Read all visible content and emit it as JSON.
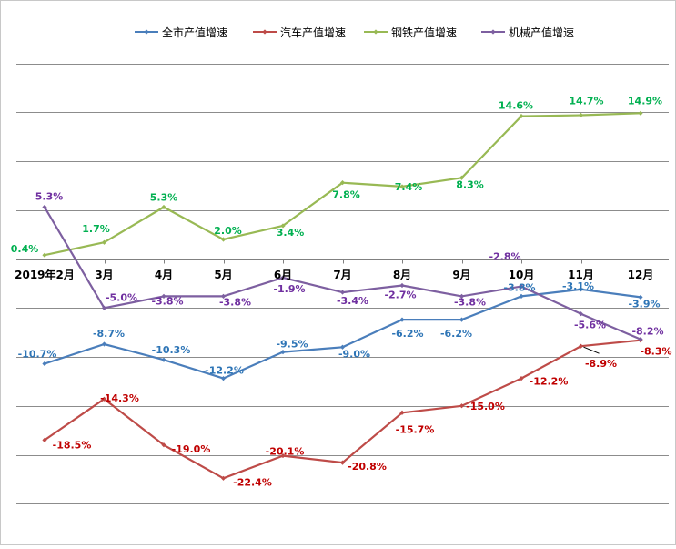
{
  "chart_data": {
    "type": "line",
    "categories": [
      "2019年2月",
      "3月",
      "4月",
      "5月",
      "6月",
      "7月",
      "8月",
      "9月",
      "10月",
      "11月",
      "12月"
    ],
    "ylim": [
      -27,
      30
    ],
    "grid": true,
    "legend": "top",
    "series": [
      {
        "name": "全市产值增速",
        "color": "#4a7ebb",
        "label_color": "#2e75b6",
        "values": [
          -10.7,
          -8.7,
          -10.3,
          -12.2,
          -9.5,
          -9.0,
          -6.2,
          -6.2,
          -3.8,
          -3.1,
          -3.9
        ],
        "labels": [
          "-10.7%",
          "-8.7%",
          "-10.3%",
          "-12.2%",
          "-9.5%",
          "-9.0%",
          "-6.2%",
          "-6.2%",
          "-3.8%",
          "-3.1%",
          "-3.9%"
        ]
      },
      {
        "name": "汽车产值增速",
        "color": "#be4b48",
        "label_color": "#c00000",
        "values": [
          -18.5,
          -14.3,
          -19.0,
          -22.4,
          -20.1,
          -20.8,
          -15.7,
          -15.0,
          -12.2,
          -8.9,
          -8.3
        ],
        "labels": [
          "-18.5%",
          "-14.3%",
          "-19.0%",
          "-22.4%",
          "-20.1%",
          "-20.8%",
          "-15.7%",
          "-15.0%",
          "-12.2%",
          "-8.9%",
          "-8.3%"
        ]
      },
      {
        "name": "钢铁产值增速",
        "color": "#98b954",
        "label_color": "#00b050",
        "values": [
          0.4,
          1.7,
          5.3,
          2.0,
          3.4,
          7.8,
          7.4,
          8.3,
          14.6,
          14.7,
          14.9
        ],
        "labels": [
          "0.4%",
          "1.7%",
          "5.3%",
          "2.0%",
          "3.4%",
          "7.8%",
          "7.4%",
          "8.3%",
          "14.6%",
          "14.7%",
          "14.9%"
        ]
      },
      {
        "name": "机械产值增速",
        "color": "#7d5fa0",
        "label_color": "#7030a0",
        "values": [
          5.3,
          -5.0,
          -3.8,
          -3.8,
          -1.9,
          -3.4,
          -2.7,
          -3.8,
          -2.8,
          -5.6,
          -8.2
        ],
        "labels": [
          "5.3%",
          "-5.0%",
          "-3.8%",
          "-3.8%",
          "-1.9%",
          "-3.4%",
          "-2.7%",
          "-3.8%",
          "-2.8%",
          "-5.6%",
          "-8.2%"
        ]
      }
    ]
  }
}
